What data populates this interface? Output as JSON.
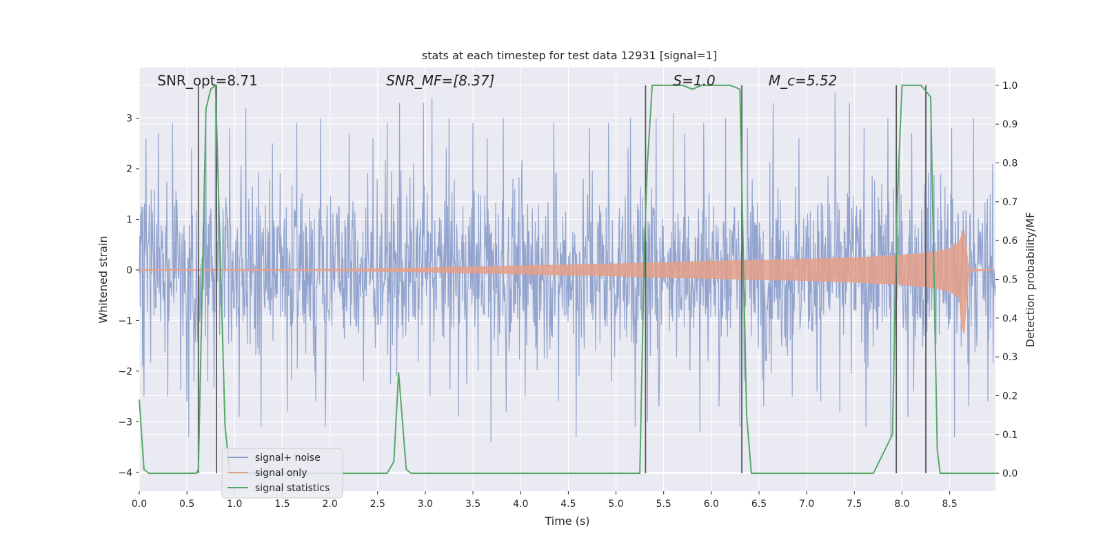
{
  "chart_data": {
    "type": "line",
    "title": "stats at each timestep for test data 12931 [signal=1]",
    "xlabel": "Time (s)",
    "ylabel": "Whitened strain",
    "y2label": "Detection probability/MF",
    "xlim": [
      0.0,
      8.98
    ],
    "ylim": [
      -4.37,
      4.0
    ],
    "y2lim": [
      -0.046,
      1.046
    ],
    "xticks": [
      0.0,
      0.5,
      1.0,
      1.5,
      2.0,
      2.5,
      3.0,
      3.5,
      4.0,
      4.5,
      5.0,
      5.5,
      6.0,
      6.5,
      7.0,
      7.5,
      8.0,
      8.5
    ],
    "xtick_labels": [
      "0.0",
      "0.5",
      "1.0",
      "1.5",
      "2.0",
      "2.5",
      "3.0",
      "3.5",
      "4.0",
      "4.5",
      "5.0",
      "5.5",
      "6.0",
      "6.5",
      "7.0",
      "7.5",
      "8.0",
      "8.5"
    ],
    "yticks": [
      -4,
      -3,
      -2,
      -1,
      0,
      1,
      2,
      3
    ],
    "ytick_labels": [
      "−4",
      "−3",
      "−2",
      "−1",
      "0",
      "1",
      "2",
      "3"
    ],
    "y2ticks": [
      0.0,
      0.1,
      0.2,
      0.3,
      0.4,
      0.5,
      0.6,
      0.7,
      0.8,
      0.9,
      1.0
    ],
    "y2tick_labels": [
      "0.0",
      "0.1",
      "0.2",
      "0.3",
      "0.4",
      "0.5",
      "0.6",
      "0.7",
      "0.8",
      "0.9",
      "1.0"
    ],
    "grid": true,
    "legend_position": "lower-left",
    "annotations": [
      {
        "x": 0.19,
        "text": "SNR_opt=8.71",
        "style": "normal"
      },
      {
        "x": 2.59,
        "text": "SNR_MF=[8.37]",
        "style": "italic"
      },
      {
        "x": 5.6,
        "text": "S=1.0",
        "style": "italic"
      },
      {
        "x": 6.6,
        "text": "M_c=5.52",
        "style": "italic"
      }
    ],
    "series": [
      {
        "name": "signal+ noise",
        "color": "#8da0cb",
        "kind": "noise",
        "envelope_sigma": 0.85,
        "peaks_high": [
          [
            0.07,
            2.6
          ],
          [
            0.2,
            2.7
          ],
          [
            0.35,
            2.9
          ],
          [
            0.55,
            2.4
          ],
          [
            0.7,
            2.9
          ],
          [
            0.8,
            3.3
          ],
          [
            0.95,
            2.8
          ],
          [
            1.12,
            3.2
          ],
          [
            1.4,
            2.5
          ],
          [
            1.65,
            2.9
          ],
          [
            1.9,
            3.0
          ],
          [
            2.2,
            2.7
          ],
          [
            2.45,
            2.6
          ],
          [
            2.6,
            2.9
          ],
          [
            2.73,
            3.3
          ],
          [
            2.98,
            3.3
          ],
          [
            3.07,
            3.4
          ],
          [
            3.25,
            3.0
          ],
          [
            3.5,
            2.9
          ],
          [
            3.65,
            2.6
          ],
          [
            3.82,
            3.0
          ],
          [
            4.05,
            3.3
          ],
          [
            4.35,
            2.9
          ],
          [
            4.72,
            2.8
          ],
          [
            4.92,
            2.9
          ],
          [
            5.15,
            3.0
          ],
          [
            5.42,
            3.0
          ],
          [
            5.6,
            3.1
          ],
          [
            5.72,
            2.7
          ],
          [
            5.92,
            2.9
          ],
          [
            6.15,
            3.0
          ],
          [
            6.38,
            2.8
          ],
          [
            6.65,
            3.3
          ],
          [
            6.92,
            2.6
          ],
          [
            7.3,
            3.5
          ],
          [
            7.45,
            3.3
          ],
          [
            7.6,
            2.8
          ],
          [
            7.85,
            3.0
          ],
          [
            8.1,
            2.7
          ],
          [
            8.3,
            2.8
          ],
          [
            8.52,
            2.8
          ],
          [
            8.75,
            3.0
          ],
          [
            8.95,
            2.1
          ]
        ],
        "peaks_low": [
          [
            0.05,
            -2.5
          ],
          [
            0.3,
            -2.5
          ],
          [
            0.5,
            -2.6
          ],
          [
            0.52,
            -3.3
          ],
          [
            0.72,
            -2.2
          ],
          [
            1.05,
            -2.9
          ],
          [
            1.28,
            -3.1
          ],
          [
            1.55,
            -2.8
          ],
          [
            1.85,
            -2.6
          ],
          [
            1.95,
            -3.1
          ],
          [
            2.35,
            -2.2
          ],
          [
            2.7,
            -2.1
          ],
          [
            3.05,
            -2.5
          ],
          [
            3.35,
            -2.9
          ],
          [
            3.69,
            -3.4
          ],
          [
            3.85,
            -2.8
          ],
          [
            4.05,
            -2.5
          ],
          [
            4.4,
            -2.6
          ],
          [
            4.58,
            -3.3
          ],
          [
            4.95,
            -2.2
          ],
          [
            5.2,
            -3.1
          ],
          [
            5.33,
            -3.0
          ],
          [
            5.45,
            -2.7
          ],
          [
            5.88,
            -3.2
          ],
          [
            6.08,
            -2.7
          ],
          [
            6.3,
            -3.1
          ],
          [
            6.55,
            -2.7
          ],
          [
            6.85,
            -2.5
          ],
          [
            7.15,
            -2.6
          ],
          [
            7.35,
            -2.8
          ],
          [
            7.62,
            -3.1
          ],
          [
            7.88,
            -3.3
          ],
          [
            8.06,
            -2.9
          ],
          [
            8.12,
            -2.4
          ],
          [
            8.55,
            -3.3
          ],
          [
            8.7,
            -2.7
          ],
          [
            8.9,
            -2.6
          ]
        ]
      },
      {
        "name": "signal only",
        "color": "#e5a088",
        "kind": "chirp",
        "x": [
          0.0,
          1.0,
          2.0,
          3.0,
          4.0,
          5.0,
          6.0,
          6.5,
          7.0,
          7.5,
          8.0,
          8.3,
          8.5,
          8.6,
          8.65,
          8.67,
          8.7,
          8.98
        ],
        "amplitude": [
          0.01,
          0.01,
          0.015,
          0.04,
          0.08,
          0.12,
          0.17,
          0.19,
          0.21,
          0.24,
          0.29,
          0.34,
          0.42,
          0.55,
          0.8,
          0.5,
          0.02,
          0.0
        ]
      },
      {
        "name": "signal statistics",
        "color": "#55a868",
        "axis": "right",
        "x": [
          0.0,
          0.05,
          0.1,
          0.6,
          0.62,
          0.7,
          0.75,
          0.8,
          0.9,
          0.95,
          1.0,
          2.55,
          2.6,
          2.67,
          2.72,
          2.8,
          2.85,
          4.9,
          5.0,
          5.25,
          5.3,
          5.33,
          5.38,
          5.7,
          5.8,
          5.9,
          6.2,
          6.3,
          6.37,
          6.42,
          6.5,
          7.7,
          7.9,
          7.95,
          8.0,
          8.2,
          8.3,
          8.37,
          8.4,
          8.98
        ],
        "values": [
          0.19,
          0.01,
          0.0,
          0.0,
          0.01,
          0.94,
          0.99,
          1.0,
          0.12,
          0.0,
          0.0,
          0.0,
          0.0,
          0.03,
          0.26,
          0.01,
          0.0,
          0.0,
          0.0,
          0.0,
          0.6,
          0.8,
          1.0,
          1.0,
          0.99,
          1.0,
          1.0,
          0.99,
          0.15,
          0.0,
          0.0,
          0.0,
          0.1,
          0.7,
          1.0,
          1.0,
          0.97,
          0.06,
          0.0,
          0.0
        ]
      }
    ],
    "vlines": [
      0.62,
      0.81,
      5.31,
      6.32,
      7.94,
      8.25
    ]
  }
}
